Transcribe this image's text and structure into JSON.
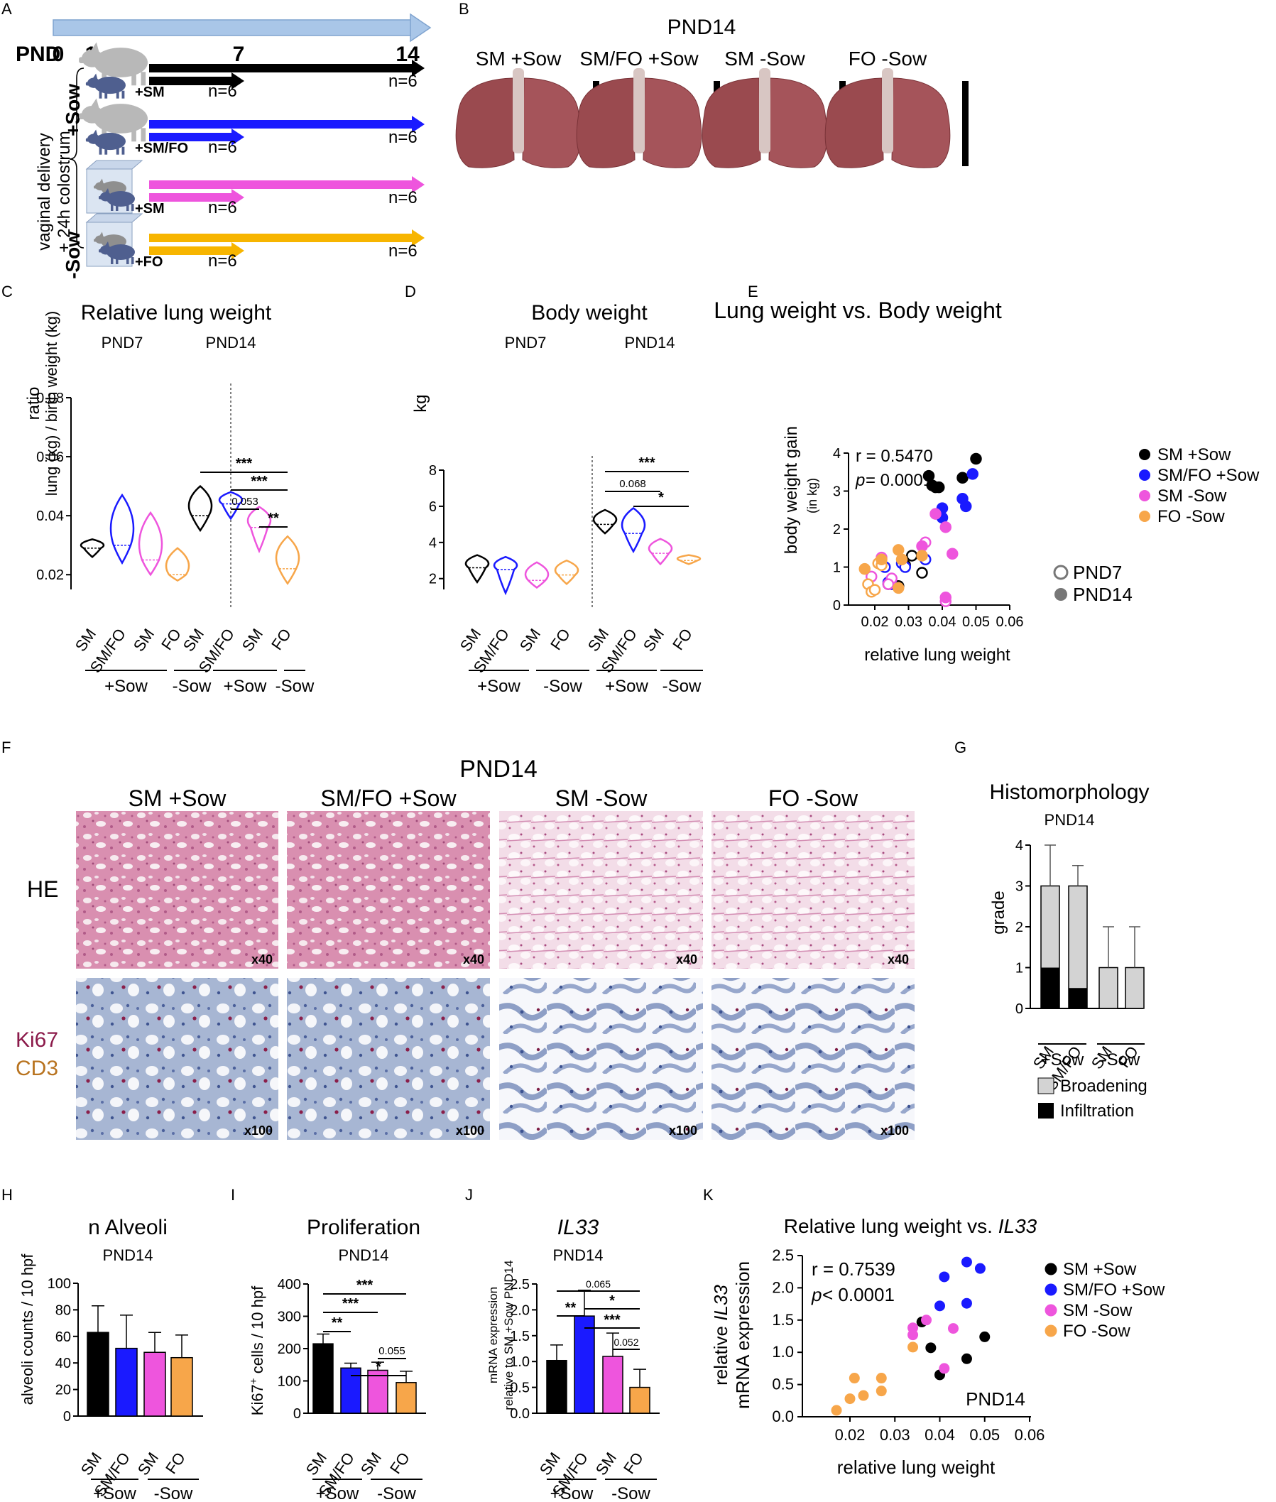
{
  "panels": {
    "A": {
      "label": "A",
      "pnd_label": "PND",
      "timepoints": [
        "0",
        "1",
        "7",
        "14"
      ],
      "side_label_1": "vaginal delivery",
      "side_label_2": "+ 24h colostrum",
      "group_sow": "+Sow",
      "group_nosow": "-Sow",
      "rows": [
        {
          "diet": "+SM",
          "n7": "n=6",
          "n14": "n=6",
          "color": "#000000"
        },
        {
          "diet": "+SM/FO",
          "n7": "n=6",
          "n14": "n=6",
          "color": "#1a1aff"
        },
        {
          "diet": "+SM",
          "n7": "n=6",
          "n14": "n=6",
          "color": "#ee55dd"
        },
        {
          "diet": "+FO",
          "n7": "n=6",
          "n14": "n=6",
          "color": "#f7b500"
        }
      ],
      "timeline_color": "#a9c6e8"
    },
    "B": {
      "label": "B",
      "title": "PND14",
      "groups": [
        "SM +Sow",
        "SM/FO +Sow",
        "SM -Sow",
        "FO -Sow"
      ]
    },
    "C": {
      "label": "C",
      "title": "Relative lung weight",
      "sub1": "PND7",
      "sub2": "PND14",
      "ylabel1": "ratio",
      "ylabel2": "lung (kg) / birth weight (kg)",
      "yticks": [
        "0.08",
        "0.06",
        "0.04",
        "0.02"
      ],
      "xcats": [
        "SM",
        "SM/FO",
        "SM",
        "FO",
        "SM",
        "SM/FO",
        "SM",
        "FO"
      ],
      "groups": [
        "+Sow",
        "-Sow",
        "+Sow",
        "-Sow"
      ],
      "sig": [
        "***",
        "***",
        "0.053",
        "**"
      ]
    },
    "D": {
      "label": "D",
      "title": "Body weight",
      "sub1": "PND7",
      "sub2": "PND14",
      "ylabel": "kg",
      "yticks": [
        "8",
        "6",
        "4",
        "2"
      ],
      "xcats": [
        "SM",
        "SM/FO",
        "SM",
        "FO",
        "SM",
        "SM/FO",
        "SM",
        "FO"
      ],
      "groups": [
        "+Sow",
        "-Sow",
        "+Sow",
        "-Sow"
      ],
      "sig": [
        "***",
        "0.068",
        "*"
      ]
    },
    "E": {
      "label": "E",
      "title": "Lung weight vs. Body weight",
      "r_text": "r  = 0.5470",
      "p_label": "p",
      "p_text": " = 0.0001",
      "ylabel1": "body weight gain",
      "ylabel2": "(in kg)",
      "xlabel": "relative lung weight",
      "xticks": [
        "0.02",
        "0.03",
        "0.04",
        "0.05",
        "0.06"
      ],
      "yticks": [
        "4",
        "3",
        "2",
        "1",
        "0"
      ],
      "legend": [
        "SM +Sow",
        "SM/FO +Sow",
        "SM -Sow",
        "FO -Sow"
      ],
      "legend2": [
        "PND7",
        "PND14"
      ]
    },
    "F": {
      "label": "F",
      "title": "PND14",
      "cols": [
        "SM +Sow",
        "SM/FO +Sow",
        "SM -Sow",
        "FO -Sow"
      ],
      "row1": "HE",
      "row2a": "Ki67",
      "row2b": "CD3",
      "mag1": "x40",
      "mag2": "x100"
    },
    "G": {
      "label": "G",
      "title": "Histomorphology",
      "sub": "PND14",
      "ylabel": "grade",
      "yticks": [
        "4",
        "3",
        "2",
        "1",
        "0"
      ],
      "xcats": [
        "SM",
        "SM/FO",
        "SM",
        "FO"
      ],
      "groups": [
        "+Sow",
        "-Sow"
      ],
      "legend": [
        "Broadening",
        "Infiltration"
      ]
    },
    "H": {
      "label": "H",
      "title": "n Alveoli",
      "sub": "PND14",
      "ylabel": "alveoli counts / 10 hpf",
      "yticks": [
        "100",
        "80",
        "60",
        "40",
        "20",
        "0"
      ],
      "xcats": [
        "SM",
        "SM/FO",
        "SM",
        "FO"
      ],
      "groups": [
        "+Sow",
        "-Sow"
      ]
    },
    "I": {
      "label": "I",
      "title": "Proliferation",
      "sub": "PND14",
      "ylabel_a": "Ki67",
      "ylabel_sup": "+",
      "ylabel_b": " cells / 10 hpf",
      "yticks": [
        "400",
        "300",
        "200",
        "100",
        "0"
      ],
      "xcats": [
        "SM",
        "SM/FO",
        "SM",
        "FO"
      ],
      "groups": [
        "+Sow",
        "-Sow"
      ],
      "sig": [
        "***",
        "***",
        "**",
        "0.055",
        "*"
      ]
    },
    "J": {
      "label": "J",
      "title": "IL33",
      "sub": "PND14",
      "ylabel1": "mRNA expression",
      "ylabel2": "relative to SM +Sow PND14",
      "yticks": [
        "2.5",
        "2.0",
        "1.5",
        "1.0",
        "0.5",
        "0.0"
      ],
      "xcats": [
        "SM",
        "SM/FO",
        "SM",
        "FO"
      ],
      "groups": [
        "+Sow",
        "-Sow"
      ],
      "sig": [
        "0.065",
        "*",
        "**",
        "***",
        "0.052"
      ]
    },
    "K": {
      "label": "K",
      "title_a": "Relative lung weight vs. ",
      "title_b": "IL33",
      "r_text": "r  = 0.7539",
      "p_label": "p",
      "p_text": " < 0.0001",
      "ylabel1a": "relative ",
      "ylabel1b": "IL33",
      "ylabel2": "mRNA expression",
      "xlabel": "relative lung weight",
      "xticks": [
        "0.02",
        "0.03",
        "0.04",
        "0.05",
        "0.06"
      ],
      "yticks": [
        "2.5",
        "2.0",
        "1.5",
        "1.0",
        "0.5",
        "0.0"
      ],
      "legend": [
        "SM +Sow",
        "SM/FO +Sow",
        "SM -Sow",
        "FO -Sow"
      ],
      "inset": "PND14"
    }
  },
  "colors": {
    "sm_sow": "#000000",
    "smfo_sow": "#1a1aff",
    "sm_nosow": "#ee55dd",
    "fo_nosow": "#f7a64a",
    "broadening": "#d3d3d3",
    "infiltration": "#000000"
  },
  "chart_data": [
    {
      "panel": "C",
      "type": "violin",
      "title": "Relative lung weight",
      "ylabel": "ratio lung (kg) / birth weight (kg)",
      "ylim": [
        0.01,
        0.08
      ],
      "categories": [
        "SM +Sow PND7",
        "SM/FO +Sow PND7",
        "SM -Sow PND7",
        "FO -Sow PND7",
        "SM +Sow PND14",
        "SM/FO +Sow PND14",
        "SM -Sow PND14",
        "FO -Sow PND14"
      ],
      "min": [
        0.026,
        0.024,
        0.02,
        0.018,
        0.035,
        0.039,
        0.028,
        0.017
      ],
      "median": [
        0.029,
        0.03,
        0.025,
        0.02,
        0.04,
        0.044,
        0.036,
        0.022
      ],
      "max": [
        0.032,
        0.047,
        0.041,
        0.029,
        0.05,
        0.048,
        0.043,
        0.033
      ]
    },
    {
      "panel": "D",
      "type": "violin",
      "title": "Body weight",
      "ylabel": "kg",
      "ylim": [
        1,
        8
      ],
      "categories": [
        "SM +Sow PND7",
        "SM/FO +Sow PND7",
        "SM -Sow PND7",
        "FO -Sow PND7",
        "SM +Sow PND14",
        "SM/FO +Sow PND14",
        "SM -Sow PND14",
        "FO -Sow PND14"
      ],
      "min": [
        1.8,
        1.2,
        1.5,
        1.7,
        4.5,
        3.5,
        2.8,
        2.8
      ],
      "median": [
        2.6,
        2.5,
        1.9,
        2.2,
        5.0,
        4.5,
        3.4,
        3.0
      ],
      "max": [
        3.3,
        3.2,
        2.9,
        3.0,
        5.8,
        5.9,
        4.2,
        3.3
      ]
    },
    {
      "panel": "E",
      "type": "scatter",
      "title": "Lung weight vs. Body weight",
      "xlabel": "relative lung weight",
      "ylabel": "body weight gain (in kg)",
      "xlim": [
        0.01,
        0.06
      ],
      "ylim": [
        0,
        4
      ],
      "series": [
        {
          "name": "SM +Sow",
          "timepoint": "PND7",
          "points": [
            [
              0.031,
              1.3
            ],
            [
              0.029,
              1.05
            ],
            [
              0.027,
              0.5
            ],
            [
              0.034,
              0.85
            ],
            [
              0.024,
              0.55
            ]
          ]
        },
        {
          "name": "SM +Sow",
          "timepoint": "PND14",
          "points": [
            [
              0.036,
              3.4
            ],
            [
              0.038,
              3.1
            ],
            [
              0.039,
              3.1
            ],
            [
              0.046,
              3.35
            ],
            [
              0.05,
              3.85
            ],
            [
              0.037,
              3.15
            ]
          ]
        },
        {
          "name": "SM/FO +Sow",
          "timepoint": "PND7",
          "points": [
            [
              0.025,
              0.55
            ],
            [
              0.028,
              1.1
            ],
            [
              0.023,
              1.0
            ],
            [
              0.029,
              1.0
            ],
            [
              0.035,
              1.2
            ],
            [
              0.024,
              0.6
            ]
          ]
        },
        {
          "name": "SM/FO +Sow",
          "timepoint": "PND14",
          "points": [
            [
              0.04,
              2.55
            ],
            [
              0.04,
              2.3
            ],
            [
              0.046,
              2.8
            ],
            [
              0.047,
              2.6
            ],
            [
              0.049,
              3.45
            ]
          ]
        },
        {
          "name": "SM -Sow",
          "timepoint": "PND7",
          "points": [
            [
              0.022,
              1.25
            ],
            [
              0.019,
              0.75
            ],
            [
              0.025,
              0.7
            ],
            [
              0.024,
              0.55
            ],
            [
              0.035,
              1.65
            ],
            [
              0.041,
              0.1
            ]
          ]
        },
        {
          "name": "SM -Sow",
          "timepoint": "PND14",
          "points": [
            [
              0.038,
              2.4
            ],
            [
              0.041,
              2.05
            ],
            [
              0.043,
              1.35
            ],
            [
              0.034,
              1.55
            ],
            [
              0.041,
              0.2
            ]
          ]
        },
        {
          "name": "FO -Sow",
          "timepoint": "PND7",
          "points": [
            [
              0.018,
              0.55
            ],
            [
              0.019,
              0.35
            ],
            [
              0.02,
              0.4
            ],
            [
              0.021,
              1.1
            ],
            [
              0.022,
              1.05
            ]
          ]
        },
        {
          "name": "FO -Sow",
          "timepoint": "PND14",
          "points": [
            [
              0.017,
              0.95
            ],
            [
              0.022,
              1.2
            ],
            [
              0.027,
              1.45
            ],
            [
              0.034,
              1.3
            ],
            [
              0.027,
              0.45
            ],
            [
              0.028,
              1.2
            ]
          ]
        }
      ]
    },
    {
      "panel": "G",
      "type": "bar",
      "title": "Histomorphology",
      "ylabel": "grade",
      "ylim": [
        0,
        4
      ],
      "categories": [
        "SM +Sow",
        "SM/FO +Sow",
        "SM -Sow",
        "FO -Sow"
      ],
      "series": [
        {
          "name": "Broadening",
          "values": [
            3,
            3,
            1,
            1
          ],
          "error": [
            1,
            0.5,
            1,
            1
          ]
        },
        {
          "name": "Infiltration",
          "values": [
            1,
            0.5,
            0,
            0
          ],
          "error": [
            0,
            0.5,
            0,
            0
          ]
        }
      ]
    },
    {
      "panel": "H",
      "type": "bar",
      "title": "n Alveoli",
      "ylabel": "alveoli counts / 10 hpf",
      "ylim": [
        0,
        100
      ],
      "categories": [
        "SM +Sow",
        "SM/FO +Sow",
        "SM -Sow",
        "FO -Sow"
      ],
      "values": [
        63,
        51,
        48,
        44
      ],
      "error": [
        20,
        25,
        15,
        17
      ]
    },
    {
      "panel": "I",
      "type": "bar",
      "title": "Proliferation",
      "ylabel": "Ki67+ cells / 10 hpf",
      "ylim": [
        0,
        400
      ],
      "categories": [
        "SM +Sow",
        "SM/FO +Sow",
        "SM -Sow",
        "FO -Sow"
      ],
      "values": [
        215,
        140,
        133,
        95
      ],
      "error": [
        30,
        15,
        25,
        35
      ]
    },
    {
      "panel": "J",
      "type": "bar",
      "title": "IL33",
      "ylabel": "mRNA expression relative to SM +Sow PND14",
      "ylim": [
        0,
        2.5
      ],
      "categories": [
        "SM +Sow",
        "SM/FO +Sow",
        "SM -Sow",
        "FO -Sow"
      ],
      "values": [
        1.02,
        1.88,
        1.1,
        0.5
      ],
      "error": [
        0.3,
        0.5,
        0.45,
        0.35
      ]
    },
    {
      "panel": "K",
      "type": "scatter",
      "title": "Relative lung weight vs. IL33",
      "xlabel": "relative lung weight",
      "ylabel": "relative IL33 mRNA expression",
      "xlim": [
        0.01,
        0.06
      ],
      "ylim": [
        0,
        2.5
      ],
      "series": [
        {
          "name": "SM +Sow",
          "points": [
            [
              0.036,
              1.47
            ],
            [
              0.038,
              1.07
            ],
            [
              0.04,
              0.65
            ],
            [
              0.046,
              0.9
            ],
            [
              0.05,
              1.24
            ]
          ]
        },
        {
          "name": "SM/FO +Sow",
          "points": [
            [
              0.04,
              1.72
            ],
            [
              0.041,
              2.17
            ],
            [
              0.046,
              2.4
            ],
            [
              0.046,
              1.76
            ],
            [
              0.049,
              2.3
            ]
          ]
        },
        {
          "name": "SM -Sow",
          "points": [
            [
              0.034,
              1.38
            ],
            [
              0.034,
              1.27
            ],
            [
              0.037,
              1.5
            ],
            [
              0.041,
              0.75
            ],
            [
              0.043,
              1.37
            ]
          ]
        },
        {
          "name": "FO -Sow",
          "points": [
            [
              0.017,
              0.1
            ],
            [
              0.021,
              0.6
            ],
            [
              0.027,
              0.6
            ],
            [
              0.02,
              0.28
            ],
            [
              0.023,
              0.33
            ],
            [
              0.027,
              0.4
            ],
            [
              0.034,
              1.08
            ]
          ]
        }
      ]
    }
  ]
}
